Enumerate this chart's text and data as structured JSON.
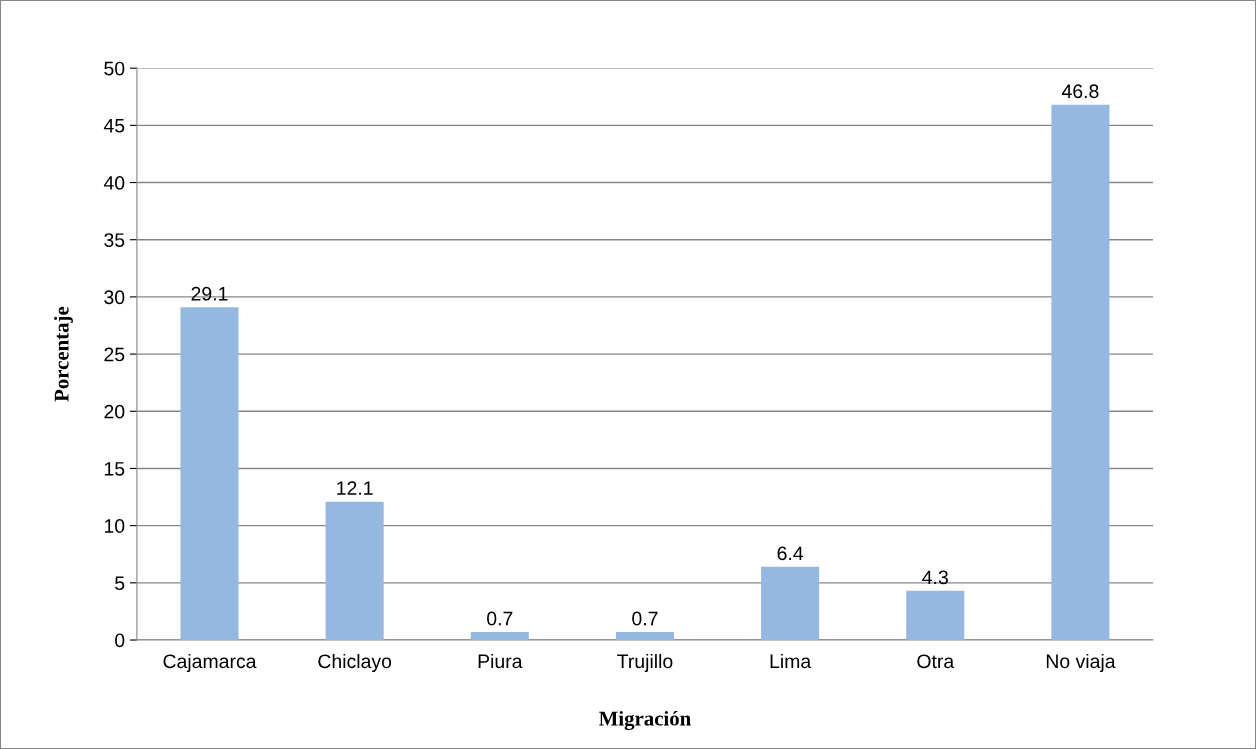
{
  "chart_data": {
    "type": "bar",
    "xlabel": "Migración",
    "ylabel": "Porcentaje",
    "categories": [
      "Cajamarca",
      "Chiclayo",
      "Piura",
      "Trujillo",
      "Lima",
      "Otra",
      "No viaja"
    ],
    "values": [
      29.1,
      12.1,
      0.7,
      0.7,
      6.4,
      4.3,
      46.8
    ],
    "color": "#95b8e0",
    "ylim": [
      0,
      50
    ],
    "yticks": [
      0,
      5,
      10,
      15,
      20,
      25,
      30,
      35,
      40,
      45,
      50
    ],
    "grid": "y",
    "data_labels": true
  }
}
